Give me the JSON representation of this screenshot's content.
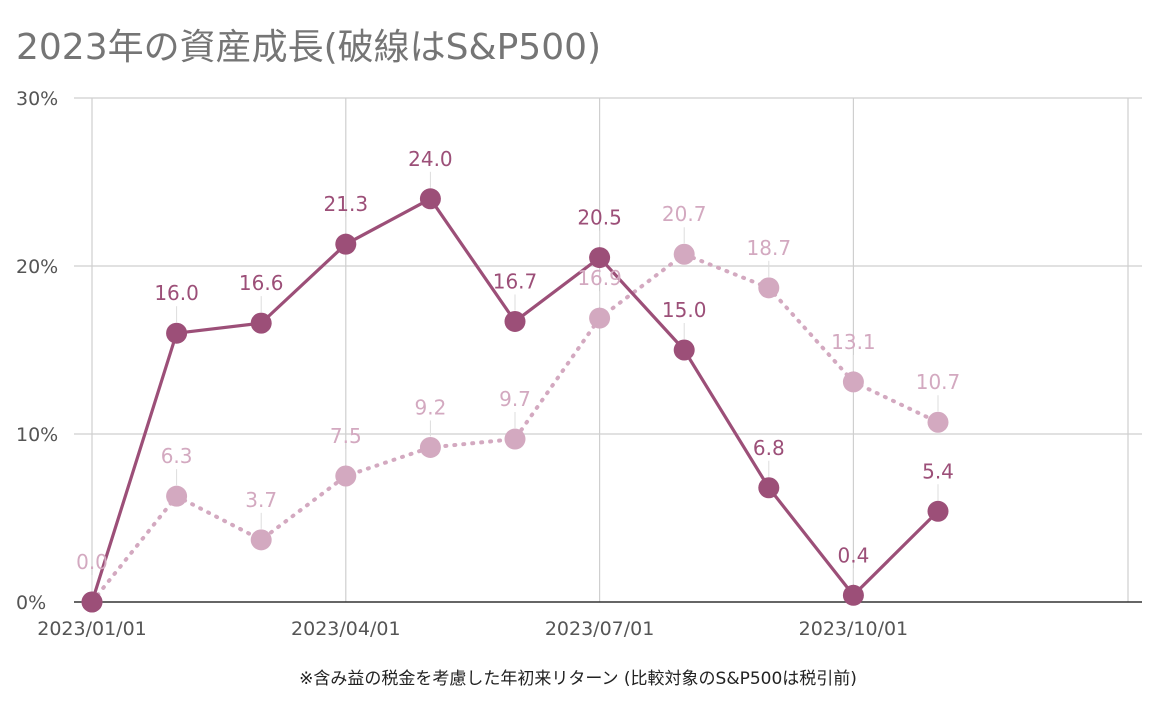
{
  "chart_data": {
    "type": "line",
    "title": "2023年の資産成長(破線はS&P500)",
    "footnote": "※含み益の税金を考慮した年初来リターン (比較対象のS&P500は税引前)",
    "x": [
      "2023/01/01",
      "2023/02/01",
      "2023/03/01",
      "2023/04/01",
      "2023/05/01",
      "2023/06/01",
      "2023/07/01",
      "2023/08/01",
      "2023/09/01",
      "2023/10/01",
      "2023/11/01"
    ],
    "x_tick_labels": [
      "2023/01/01",
      "2023/04/01",
      "2023/07/01",
      "2023/10/01"
    ],
    "x_tick_indices": [
      0,
      3,
      6,
      9
    ],
    "ylim": [
      0,
      30
    ],
    "y_ticks": [
      0,
      10,
      20,
      30
    ],
    "y_tick_labels": [
      "0%",
      "10%",
      "20%",
      "30%"
    ],
    "grid": true,
    "series": [
      {
        "style": "solid",
        "color": "#9c4f78",
        "values": [
          0.0,
          16.0,
          16.6,
          21.3,
          24.0,
          16.7,
          20.5,
          15.0,
          6.8,
          0.4,
          5.4
        ],
        "labels": [
          "",
          "16.0",
          "16.6",
          "21.3",
          "24.0",
          "16.7",
          "20.5",
          "15.0",
          "6.8",
          "0.4",
          "5.4"
        ]
      },
      {
        "style": "dotted",
        "color": "#d3a9c0",
        "values": [
          0.0,
          6.3,
          3.7,
          7.5,
          9.2,
          9.7,
          16.9,
          20.7,
          18.7,
          13.1,
          10.7
        ],
        "labels": [
          "0.0",
          "6.3",
          "3.7",
          "7.5",
          "9.2",
          "9.7",
          "16.9",
          "20.7",
          "18.7",
          "13.1",
          "10.7"
        ]
      }
    ]
  }
}
